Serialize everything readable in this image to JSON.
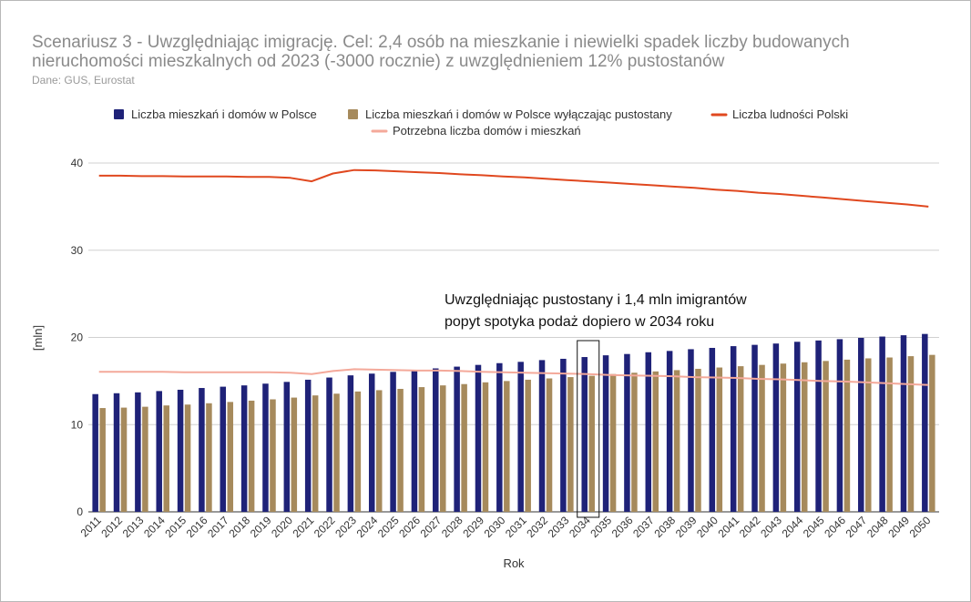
{
  "chart_data": {
    "type": "bar",
    "title": "Scenariusz 3 - Uwzględniając imigrację. Cel: 2,4 osób na mieszkanie i niewielki spadek liczby budowanych nieruchomości mieszkalnych od 2023 (-3000 rocznie) z uwzględnieniem 12% pustostanów",
    "subtitle": "Dane: GUS, Eurostat",
    "xlabel": "Rok",
    "ylabel": "[mln]",
    "ylim": [
      0,
      40
    ],
    "yticks": [
      "0",
      "10",
      "20",
      "30",
      "40"
    ],
    "grid": true,
    "legend_position": "top",
    "categories": [
      "2011",
      "2012",
      "2013",
      "2014",
      "2015",
      "2016",
      "2017",
      "2018",
      "2019",
      "2020",
      "2021",
      "2022",
      "2023",
      "2024",
      "2025",
      "2026",
      "2027",
      "2028",
      "2029",
      "2030",
      "2031",
      "2032",
      "2033",
      "2034",
      "2035",
      "2036",
      "2037",
      "2038",
      "2039",
      "2040",
      "2041",
      "2042",
      "2043",
      "2044",
      "2045",
      "2046",
      "2047",
      "2048",
      "2049",
      "2050"
    ],
    "series": [
      {
        "name": "Liczba mieszkań i domów w Polsce",
        "kind": "bar",
        "color": "#1f2278",
        "values": [
          13.5,
          13.6,
          13.7,
          13.85,
          14.0,
          14.2,
          14.35,
          14.5,
          14.7,
          14.9,
          15.15,
          15.4,
          15.65,
          15.85,
          16.05,
          16.25,
          16.45,
          16.65,
          16.85,
          17.05,
          17.2,
          17.4,
          17.55,
          17.75,
          17.95,
          18.1,
          18.3,
          18.45,
          18.65,
          18.8,
          19.0,
          19.15,
          19.3,
          19.5,
          19.65,
          19.8,
          19.95,
          20.1,
          20.25,
          20.4
        ]
      },
      {
        "name": "Liczba mieszkań i domów w Polsce wyłączając pustostany",
        "kind": "bar",
        "color": "#a68a5c",
        "values": [
          11.9,
          11.95,
          12.05,
          12.2,
          12.3,
          12.45,
          12.6,
          12.75,
          12.9,
          13.1,
          13.35,
          13.55,
          13.8,
          13.95,
          14.1,
          14.3,
          14.5,
          14.65,
          14.85,
          15.0,
          15.15,
          15.3,
          15.45,
          15.6,
          15.8,
          15.95,
          16.1,
          16.25,
          16.4,
          16.55,
          16.7,
          16.85,
          17.0,
          17.15,
          17.3,
          17.45,
          17.6,
          17.7,
          17.85,
          18.0
        ]
      },
      {
        "name": "Liczba ludności Polski",
        "kind": "line",
        "color": "#e0481f",
        "values": [
          38.55,
          38.55,
          38.5,
          38.5,
          38.45,
          38.45,
          38.45,
          38.4,
          38.4,
          38.3,
          37.9,
          38.8,
          39.2,
          39.15,
          39.05,
          38.95,
          38.85,
          38.7,
          38.6,
          38.45,
          38.35,
          38.2,
          38.05,
          37.9,
          37.75,
          37.6,
          37.45,
          37.3,
          37.15,
          36.95,
          36.8,
          36.6,
          36.45,
          36.25,
          36.05,
          35.85,
          35.65,
          35.45,
          35.25,
          35.0
        ]
      },
      {
        "name": "Potrzebna liczba domów i mieszkań",
        "kind": "line",
        "color": "#f4a99a",
        "values": [
          16.05,
          16.05,
          16.05,
          16.05,
          16.0,
          16.0,
          16.0,
          16.0,
          16.0,
          15.95,
          15.8,
          16.15,
          16.35,
          16.3,
          16.25,
          16.2,
          16.2,
          16.15,
          16.05,
          16.0,
          15.95,
          15.9,
          15.85,
          15.8,
          15.7,
          15.65,
          15.6,
          15.55,
          15.45,
          15.4,
          15.35,
          15.25,
          15.2,
          15.1,
          15.0,
          14.95,
          14.85,
          14.75,
          14.65,
          14.55
        ]
      }
    ],
    "annotation": {
      "lines": [
        "Uwzględniając pustostany i 1,4 mln imigrantów",
        "popyt spotyka podaż dopiero w 2034 roku"
      ],
      "highlight_category": "2034"
    }
  }
}
